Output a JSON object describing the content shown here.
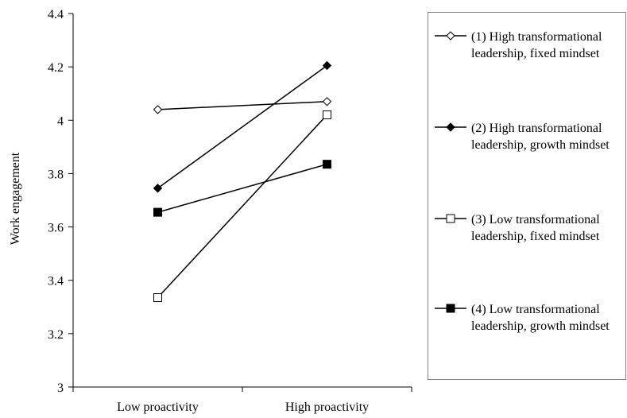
{
  "chart_data": {
    "type": "line",
    "ylabel": "Work engagement",
    "xlabel": "",
    "categories": [
      "Low proactivity",
      "High proactivity"
    ],
    "ylim": [
      3,
      4.4
    ],
    "yticks": [
      "3",
      "3.2",
      "3.4",
      "3.6",
      "3.8",
      "4",
      "4.2",
      "4.4"
    ],
    "grid": false,
    "legend_position": "right",
    "series": [
      {
        "name": "(1) High transformational leadership, fixed mindset",
        "values": [
          4.04,
          4.07
        ],
        "marker": "diamond-open"
      },
      {
        "name": "(2) High transformational leadership, growth mindset",
        "values": [
          3.745,
          4.205
        ],
        "marker": "diamond-filled"
      },
      {
        "name": "(3) Low transformational leadership, fixed mindset",
        "values": [
          3.335,
          4.02
        ],
        "marker": "square-open"
      },
      {
        "name": "(4) Low transformational leadership, growth mindset",
        "values": [
          3.655,
          3.835
        ],
        "marker": "square-filled"
      }
    ]
  }
}
